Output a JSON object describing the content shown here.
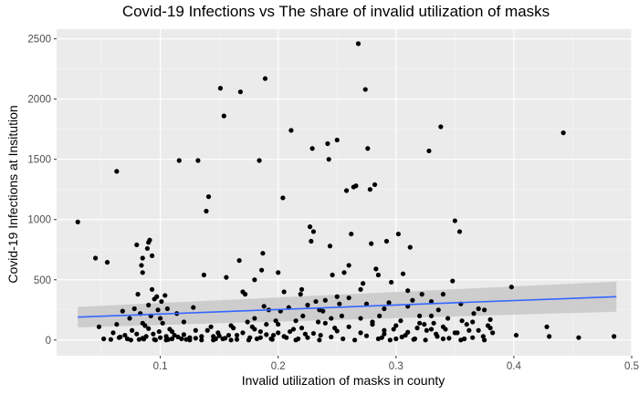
{
  "chart_data": {
    "type": "scatter",
    "title": "Covid-19 Infections vs The share of invalid utilization of masks",
    "xlabel": "Invalid utilization of masks in county",
    "ylabel": "Covid-19 Infections at Insitution",
    "xlim": [
      0.012,
      0.5
    ],
    "ylim": [
      -130,
      2580
    ],
    "x_ticks": [
      0.1,
      0.2,
      0.3,
      0.4,
      0.5
    ],
    "x_tick_labels": [
      "0.1",
      "0.2",
      "0.3",
      "0.4",
      "0.5"
    ],
    "y_ticks": [
      0,
      500,
      1000,
      1500,
      2000,
      2500
    ],
    "y_tick_labels": [
      "0",
      "500",
      "1000",
      "1500",
      "2000",
      "2500"
    ],
    "grid": true,
    "panel_background": "#ebebeb",
    "point_color": "#000000",
    "trend_line": {
      "method": "linear fit with confidence band",
      "color": "#3366ff",
      "band_color": "#c8c8c8",
      "x": [
        0.03,
        0.487
      ],
      "y": [
        190,
        360
      ],
      "band_lower": [
        105,
        235
      ],
      "band_upper": [
        275,
        485
      ]
    },
    "points": [
      [
        0.03,
        980
      ],
      [
        0.045,
        680
      ],
      [
        0.055,
        645
      ],
      [
        0.063,
        1400
      ],
      [
        0.048,
        110
      ],
      [
        0.052,
        10
      ],
      [
        0.058,
        5
      ],
      [
        0.06,
        60
      ],
      [
        0.063,
        130
      ],
      [
        0.066,
        25
      ],
      [
        0.068,
        240
      ],
      [
        0.07,
        40
      ],
      [
        0.072,
        10
      ],
      [
        0.074,
        180
      ],
      [
        0.076,
        80
      ],
      [
        0.078,
        260
      ],
      [
        0.08,
        790
      ],
      [
        0.081,
        380
      ],
      [
        0.082,
        5
      ],
      [
        0.083,
        220
      ],
      [
        0.084,
        620
      ],
      [
        0.085,
        680
      ],
      [
        0.085,
        560
      ],
      [
        0.086,
        8
      ],
      [
        0.087,
        120
      ],
      [
        0.088,
        30
      ],
      [
        0.089,
        760
      ],
      [
        0.09,
        290
      ],
      [
        0.09,
        810
      ],
      [
        0.091,
        830
      ],
      [
        0.092,
        200
      ],
      [
        0.093,
        700
      ],
      [
        0.093,
        420
      ],
      [
        0.094,
        50
      ],
      [
        0.095,
        340
      ],
      [
        0.096,
        0
      ],
      [
        0.097,
        360
      ],
      [
        0.098,
        250
      ],
      [
        0.099,
        70
      ],
      [
        0.1,
        180
      ],
      [
        0.101,
        320
      ],
      [
        0.102,
        140
      ],
      [
        0.104,
        370
      ],
      [
        0.105,
        30
      ],
      [
        0.106,
        260
      ],
      [
        0.107,
        5
      ],
      [
        0.108,
        90
      ],
      [
        0.11,
        10
      ],
      [
        0.112,
        40
      ],
      [
        0.114,
        220
      ],
      [
        0.116,
        1490
      ],
      [
        0.118,
        10
      ],
      [
        0.12,
        150
      ],
      [
        0.122,
        5
      ],
      [
        0.125,
        20
      ],
      [
        0.128,
        270
      ],
      [
        0.13,
        80
      ],
      [
        0.132,
        1490
      ],
      [
        0.135,
        0
      ],
      [
        0.137,
        540
      ],
      [
        0.139,
        1070
      ],
      [
        0.141,
        1190
      ],
      [
        0.143,
        110
      ],
      [
        0.145,
        30
      ],
      [
        0.147,
        10
      ],
      [
        0.149,
        60
      ],
      [
        0.151,
        2090
      ],
      [
        0.153,
        10
      ],
      [
        0.154,
        1860
      ],
      [
        0.156,
        520
      ],
      [
        0.158,
        40
      ],
      [
        0.16,
        0
      ],
      [
        0.162,
        100
      ],
      [
        0.165,
        5
      ],
      [
        0.167,
        660
      ],
      [
        0.168,
        2060
      ],
      [
        0.17,
        400
      ],
      [
        0.172,
        380
      ],
      [
        0.174,
        150
      ],
      [
        0.176,
        20
      ],
      [
        0.178,
        110
      ],
      [
        0.18,
        180
      ],
      [
        0.182,
        10
      ],
      [
        0.184,
        1490
      ],
      [
        0.185,
        70
      ],
      [
        0.186,
        580
      ],
      [
        0.187,
        720
      ],
      [
        0.188,
        280
      ],
      [
        0.189,
        2170
      ],
      [
        0.19,
        130
      ],
      [
        0.192,
        250
      ],
      [
        0.194,
        10
      ],
      [
        0.196,
        40
      ],
      [
        0.198,
        160
      ],
      [
        0.2,
        60
      ],
      [
        0.202,
        240
      ],
      [
        0.204,
        1180
      ],
      [
        0.205,
        400
      ],
      [
        0.207,
        20
      ],
      [
        0.209,
        270
      ],
      [
        0.211,
        1740
      ],
      [
        0.213,
        90
      ],
      [
        0.215,
        160
      ],
      [
        0.217,
        10
      ],
      [
        0.219,
        380
      ],
      [
        0.221,
        200
      ],
      [
        0.223,
        50
      ],
      [
        0.225,
        290
      ],
      [
        0.227,
        940
      ],
      [
        0.228,
        820
      ],
      [
        0.229,
        1590
      ],
      [
        0.23,
        900
      ],
      [
        0.232,
        320
      ],
      [
        0.234,
        150
      ],
      [
        0.236,
        40
      ],
      [
        0.238,
        240
      ],
      [
        0.24,
        330
      ],
      [
        0.242,
        1630
      ],
      [
        0.243,
        1500
      ],
      [
        0.244,
        780
      ],
      [
        0.246,
        540
      ],
      [
        0.248,
        100
      ],
      [
        0.25,
        1660
      ],
      [
        0.252,
        300
      ],
      [
        0.254,
        200
      ],
      [
        0.256,
        560
      ],
      [
        0.258,
        1240
      ],
      [
        0.26,
        620
      ],
      [
        0.262,
        880
      ],
      [
        0.264,
        1270
      ],
      [
        0.266,
        1280
      ],
      [
        0.268,
        2460
      ],
      [
        0.27,
        180
      ],
      [
        0.272,
        470
      ],
      [
        0.274,
        2080
      ],
      [
        0.276,
        1590
      ],
      [
        0.278,
        1250
      ],
      [
        0.279,
        800
      ],
      [
        0.28,
        130
      ],
      [
        0.282,
        1290
      ],
      [
        0.283,
        590
      ],
      [
        0.285,
        540
      ],
      [
        0.286,
        200
      ],
      [
        0.288,
        20
      ],
      [
        0.29,
        50
      ],
      [
        0.292,
        820
      ],
      [
        0.294,
        310
      ],
      [
        0.296,
        480
      ],
      [
        0.298,
        90
      ],
      [
        0.3,
        10
      ],
      [
        0.302,
        880
      ],
      [
        0.304,
        160
      ],
      [
        0.306,
        550
      ],
      [
        0.308,
        40
      ],
      [
        0.31,
        410
      ],
      [
        0.312,
        770
      ],
      [
        0.314,
        330
      ],
      [
        0.316,
        10
      ],
      [
        0.318,
        100
      ],
      [
        0.32,
        200
      ],
      [
        0.322,
        380
      ],
      [
        0.324,
        130
      ],
      [
        0.326,
        80
      ],
      [
        0.328,
        1570
      ],
      [
        0.33,
        320
      ],
      [
        0.332,
        140
      ],
      [
        0.334,
        50
      ],
      [
        0.336,
        250
      ],
      [
        0.338,
        1770
      ],
      [
        0.34,
        10
      ],
      [
        0.342,
        90
      ],
      [
        0.344,
        180
      ],
      [
        0.348,
        490
      ],
      [
        0.35,
        990
      ],
      [
        0.352,
        60
      ],
      [
        0.354,
        900
      ],
      [
        0.356,
        160
      ],
      [
        0.358,
        10
      ],
      [
        0.362,
        80
      ],
      [
        0.366,
        220
      ],
      [
        0.37,
        260
      ],
      [
        0.374,
        30
      ],
      [
        0.378,
        120
      ],
      [
        0.38,
        170
      ],
      [
        0.382,
        60
      ],
      [
        0.398,
        440
      ],
      [
        0.402,
        40
      ],
      [
        0.428,
        110
      ],
      [
        0.43,
        30
      ],
      [
        0.442,
        1720
      ],
      [
        0.455,
        20
      ],
      [
        0.485,
        30
      ],
      [
        0.065,
        20
      ],
      [
        0.075,
        0
      ],
      [
        0.085,
        15
      ],
      [
        0.095,
        5
      ],
      [
        0.105,
        0
      ],
      [
        0.115,
        25
      ],
      [
        0.125,
        0
      ],
      [
        0.135,
        30
      ],
      [
        0.145,
        0
      ],
      [
        0.155,
        15
      ],
      [
        0.165,
        40
      ],
      [
        0.175,
        0
      ],
      [
        0.185,
        20
      ],
      [
        0.195,
        5
      ],
      [
        0.205,
        30
      ],
      [
        0.215,
        0
      ],
      [
        0.225,
        20
      ],
      [
        0.235,
        0
      ],
      [
        0.245,
        25
      ],
      [
        0.255,
        10
      ],
      [
        0.265,
        0
      ],
      [
        0.275,
        35
      ],
      [
        0.285,
        10
      ],
      [
        0.295,
        0
      ],
      [
        0.305,
        25
      ],
      [
        0.315,
        5
      ],
      [
        0.325,
        0
      ],
      [
        0.335,
        30
      ],
      [
        0.345,
        15
      ],
      [
        0.355,
        0
      ],
      [
        0.365,
        20
      ],
      [
        0.375,
        0
      ],
      [
        0.08,
        50
      ],
      [
        0.09,
        95
      ],
      [
        0.1,
        20
      ],
      [
        0.11,
        70
      ],
      [
        0.12,
        45
      ],
      [
        0.13,
        15
      ],
      [
        0.14,
        80
      ],
      [
        0.15,
        35
      ],
      [
        0.16,
        120
      ],
      [
        0.17,
        60
      ],
      [
        0.18,
        90
      ],
      [
        0.19,
        45
      ],
      [
        0.2,
        130
      ],
      [
        0.21,
        70
      ],
      [
        0.22,
        100
      ],
      [
        0.23,
        55
      ],
      [
        0.24,
        140
      ],
      [
        0.25,
        75
      ],
      [
        0.26,
        110
      ],
      [
        0.27,
        60
      ],
      [
        0.28,
        150
      ],
      [
        0.29,
        80
      ],
      [
        0.3,
        120
      ],
      [
        0.31,
        65
      ],
      [
        0.32,
        140
      ],
      [
        0.33,
        90
      ],
      [
        0.34,
        110
      ],
      [
        0.35,
        60
      ],
      [
        0.36,
        130
      ],
      [
        0.37,
        80
      ],
      [
        0.38,
        100
      ],
      [
        0.26,
        350
      ],
      [
        0.27,
        420
      ],
      [
        0.25,
        360
      ],
      [
        0.235,
        250
      ],
      [
        0.275,
        300
      ],
      [
        0.29,
        260
      ],
      [
        0.31,
        280
      ],
      [
        0.33,
        200
      ],
      [
        0.245,
        180
      ],
      [
        0.22,
        420
      ],
      [
        0.2,
        560
      ],
      [
        0.18,
        500
      ],
      [
        0.34,
        380
      ],
      [
        0.355,
        300
      ],
      [
        0.365,
        150
      ],
      [
        0.375,
        250
      ],
      [
        0.085,
        140
      ]
    ]
  }
}
